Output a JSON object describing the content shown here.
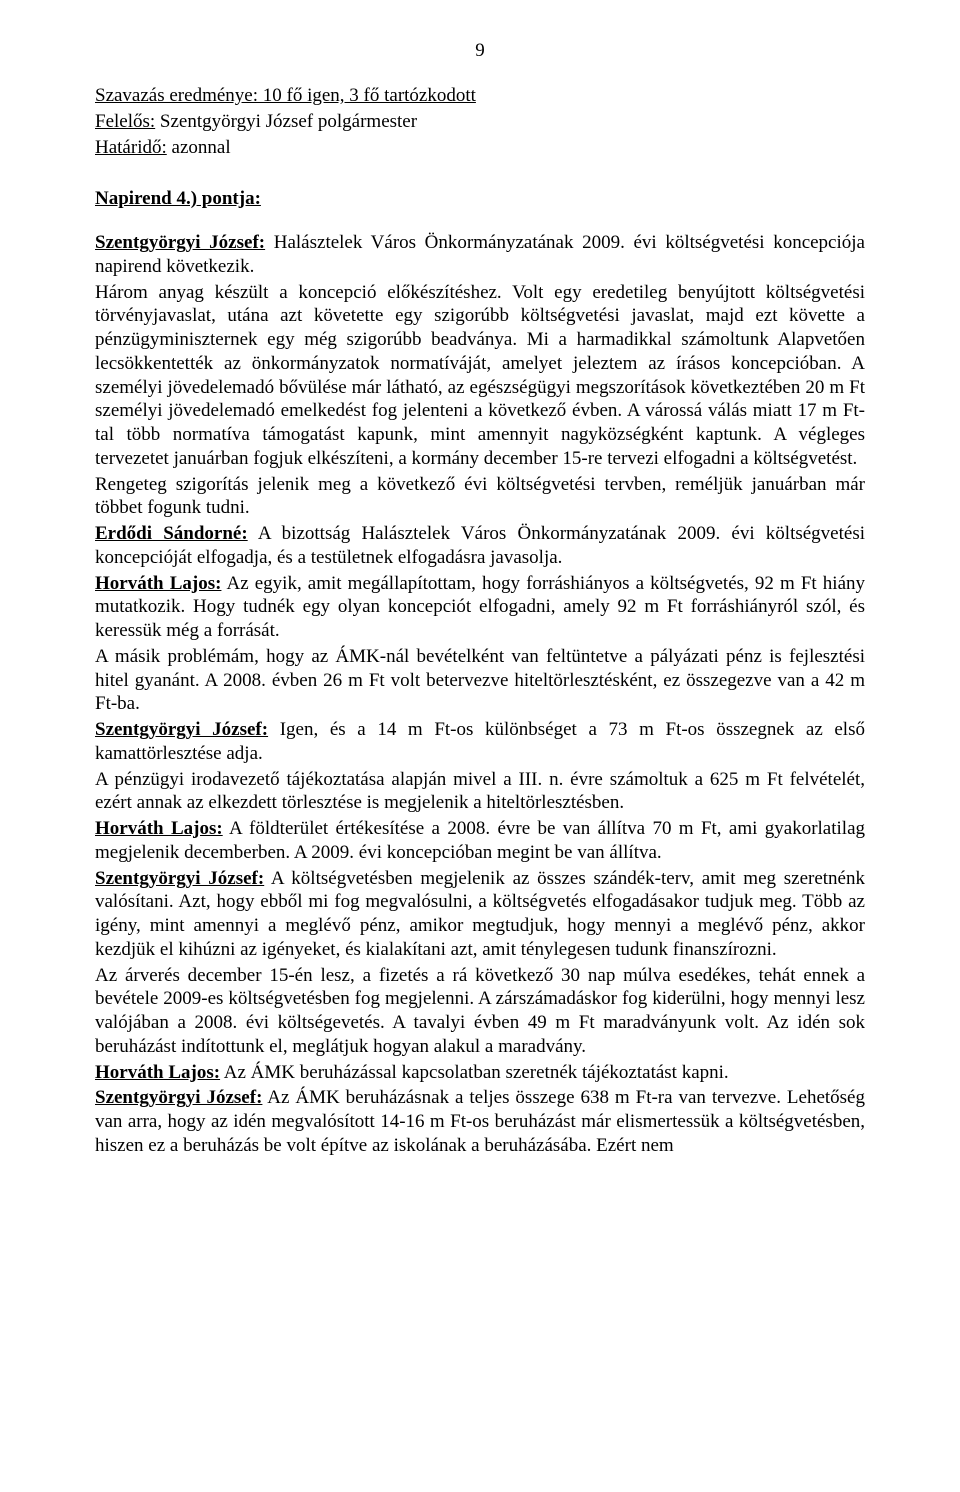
{
  "pageNumber": "9",
  "voteLine": "Szavazás eredménye: 10 fő igen, 3 fő tartózkodott",
  "responsibleLabel": "Felelős:",
  "responsibleValue": " Szentgyörgyi József polgármester",
  "deadlineLabel": "Határidő:",
  "deadlineValue": " azonnal",
  "agendaLabel": "Napirend 4.) pontja:",
  "intro": {
    "speaker": "Szentgyörgyi József:",
    "text": " Halásztelek Város Önkormányzatának 2009. évi költségvetési koncepciója napirend következik."
  },
  "bodyPara": "Három anyag készült a koncepció előkészítéshez. Volt egy eredetileg benyújtott költségvetési törvényjavaslat, utána azt követette egy szigorúbb költségvetési javaslat, majd ezt követte a pénzügyminiszternek egy még szigorúbb beadványa. Mi a harmadikkal számoltunk Alapvetően lecsökkentették az önkormányzatok normatíváját, amelyet jeleztem az írásos koncepcióban. A személyi jövedelemadó bővülése már látható, az egészségügyi megszorítások következtében 20 m Ft személyi jövedelemadó emelkedést fog jelenteni a következő évben. A várossá válás miatt 17 m Ft-tal több normatíva támogatást kapunk, mint amennyit nagyközségként kaptunk. A végleges tervezetet januárban fogjuk elkészíteni, a kormány december 15-re tervezi elfogadni a költségvetést.",
  "bodyPara2": "Rengeteg szigorítás jelenik meg a következő évi költségvetési tervben, reméljük januárban már többet fogunk tudni.",
  "blocks": [
    {
      "speaker": "Erdődi Sándorné:",
      "text": " A bizottság Halásztelek Város Önkormányzatának 2009. évi költségvetési koncepcióját elfogadja, és a testületnek elfogadásra javasolja."
    },
    {
      "speaker": "Horváth Lajos:",
      "text": " Az egyik, amit megállapítottam, hogy forráshiányos a költségvetés, 92 m Ft hiány mutatkozik. Hogy tudnék egy olyan koncepciót elfogadni, amely 92 m Ft forráshiányról szól, és keressük még a forrását."
    }
  ],
  "plain1": "A másik problémám, hogy az ÁMK-nál bevételként van feltüntetve a pályázati pénz is fejlesztési hitel gyanánt. A 2008. évben 26 m Ft volt betervezve hiteltörlesztésként, ez összegezve van a 42 m Ft-ba.",
  "block3": {
    "speaker": "Szentgyörgyi József:",
    "text": " Igen, és a 14 m Ft-os különbséget a 73 m Ft-os összegnek az első kamattörlesztése adja."
  },
  "plain2": "A pénzügyi irodavezető tájékoztatása alapján mivel a III. n. évre számoltuk a 625 m Ft felvételét, ezért annak az elkezdett törlesztése is megjelenik a hiteltörlesztésben.",
  "block4": {
    "speaker": "Horváth Lajos:",
    "text": " A földterület értékesítése a 2008. évre be van állítva 70 m Ft, ami gyakorlatilag megjelenik decemberben. A 2009. évi koncepcióban megint be van állítva."
  },
  "block5": {
    "speaker": "Szentgyörgyi József:",
    "text": " A költségvetésben megjelenik az összes szándék-terv, amit meg szeretnénk valósítani. Azt, hogy ebből mi fog megvalósulni, a költségvetés elfogadásakor tudjuk meg. Több az igény, mint amennyi a meglévő pénz, amikor megtudjuk, hogy mennyi a meglévő pénz, akkor kezdjük el kihúzni az igényeket, és kialakítani azt, amit ténylegesen tudunk finanszírozni."
  },
  "plain3": "Az árverés december 15-én lesz, a fizetés a rá következő 30 nap múlva esedékes, tehát ennek a bevétele 2009-es költségvetésben fog megjelenni. A zárszámadáskor fog kiderülni, hogy mennyi lesz valójában a 2008. évi költségevetés. A tavalyi évben 49 m Ft maradványunk volt. Az idén sok beruházást indítottunk el, meglátjuk hogyan alakul a maradvány.",
  "block6": {
    "speaker": "Horváth Lajos:",
    "text": " Az ÁMK beruházással kapcsolatban szeretnék tájékoztatást kapni."
  },
  "block7": {
    "speaker": "Szentgyörgyi József:",
    "text": " Az ÁMK beruházásnak a teljes összege 638 m Ft-ra van tervezve. Lehetőség van arra, hogy az idén megvalósított 14-16 m Ft-os beruházást már elismertessük a költségvetésben, hiszen ez a beruházás be volt építve az iskolának a beruházásába. Ezért nem"
  }
}
